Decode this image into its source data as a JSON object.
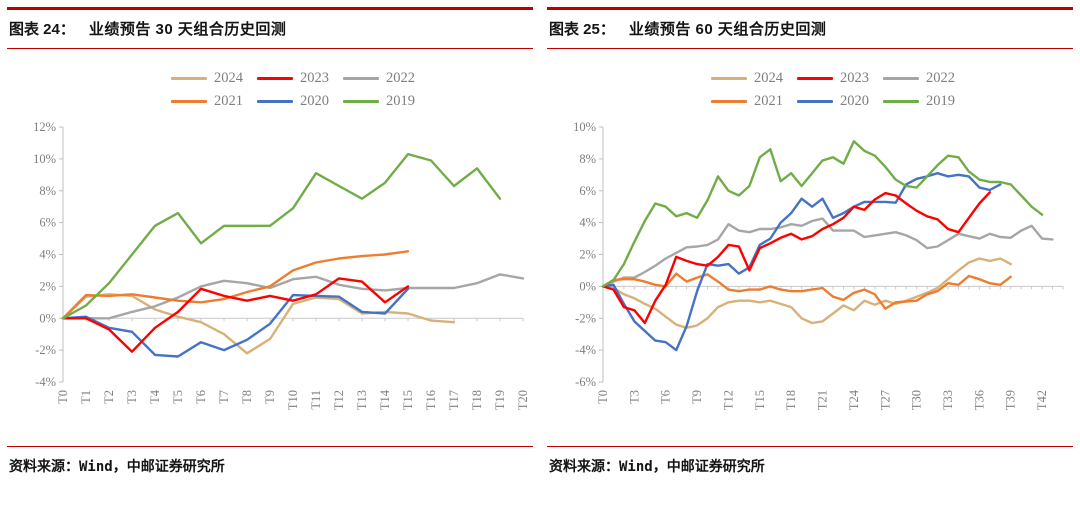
{
  "panels": [
    {
      "figure_label": "图表 24：",
      "title": "业绩预告 30 天组合历史回测",
      "source": "资料来源：Wind，中邮证券研究所"
    },
    {
      "figure_label": "图表 25：",
      "title": "业绩预告 60 天组合历史回测",
      "source": "资料来源：Wind，中邮证券研究所"
    }
  ],
  "style_colors": {
    "rule_red": "#c00000",
    "axis_gray": "#bfbfbf",
    "zero_line_gray": "#c9c9c9",
    "label_gray": "#7f7f7f"
  },
  "chart_data": [
    {
      "type": "line",
      "title": "业绩预告30天组合历史回测",
      "xlabel": "",
      "ylabel": "",
      "ylim": [
        -4,
        12
      ],
      "y_step": 2,
      "y_tick_labels": [
        "12%",
        "10%",
        "8%",
        "6%",
        "4%",
        "2%",
        "0%",
        "-2%",
        "-4%"
      ],
      "x_max": 20,
      "x_label_step": 1,
      "x_labels": [
        "T0",
        "T1",
        "T2",
        "T3",
        "T4",
        "T5",
        "T6",
        "T7",
        "T8",
        "T9",
        "T10",
        "T11",
        "T12",
        "T13",
        "T14",
        "T15",
        "T16",
        "T17",
        "T18",
        "T19",
        "T20"
      ],
      "grid": false,
      "legend_position": "top",
      "legend_rows": [
        [
          "2024",
          "2023",
          "2022"
        ],
        [
          "2021",
          "2020",
          "2019"
        ]
      ],
      "series": [
        {
          "name": "2024",
          "color": "#d8b179",
          "values": [
            0,
            1.35,
            1.5,
            1.4,
            0.55,
            0.1,
            -0.25,
            -1.0,
            -2.2,
            -1.3,
            0.9,
            1.3,
            1.2,
            0.3,
            0.4,
            0.3,
            -0.15,
            -0.25
          ]
        },
        {
          "name": "2023",
          "color": "#ff0000",
          "values": [
            0,
            0,
            -0.7,
            -2.1,
            -0.6,
            0.4,
            1.85,
            1.4,
            1.1,
            1.4,
            1.1,
            1.5,
            2.5,
            2.3,
            1.0,
            2.0
          ]
        },
        {
          "name": "2022",
          "color": "#a6a6a6",
          "values": [
            0,
            0,
            0,
            0.4,
            0.75,
            1.3,
            2.0,
            2.35,
            2.2,
            1.9,
            2.45,
            2.6,
            2.1,
            1.85,
            1.75,
            1.9,
            1.9,
            1.9,
            2.2,
            2.75,
            2.5
          ]
        },
        {
          "name": "2021",
          "color": "#ed7d31",
          "values": [
            0,
            1.45,
            1.4,
            1.5,
            1.3,
            1.1,
            1.0,
            1.2,
            1.65,
            2.0,
            3.0,
            3.5,
            3.75,
            3.9,
            4.0,
            4.2
          ]
        },
        {
          "name": "2020",
          "color": "#4472c4",
          "values": [
            0,
            0.1,
            -0.6,
            -0.85,
            -2.3,
            -2.4,
            -1.5,
            -2.0,
            -1.35,
            -0.35,
            1.45,
            1.4,
            1.35,
            0.4,
            0.3,
            1.85
          ]
        },
        {
          "name": "2019",
          "color": "#70ad47",
          "values": [
            0,
            0.8,
            2.2,
            4.0,
            5.8,
            6.6,
            4.7,
            5.8,
            5.8,
            5.8,
            6.9,
            9.1,
            8.3,
            7.5,
            8.5,
            10.3,
            9.9,
            8.3,
            9.4,
            7.5
          ]
        }
      ]
    },
    {
      "type": "line",
      "title": "业绩预告60天组合历史回测",
      "xlabel": "",
      "ylabel": "",
      "ylim": [
        -6,
        10
      ],
      "y_step": 2,
      "y_tick_labels": [
        "10%",
        "8%",
        "6%",
        "4%",
        "2%",
        "0%",
        "-2%",
        "-4%",
        "-6%"
      ],
      "x_max": 44,
      "x_label_step": 3,
      "x_labels": [
        "T0",
        "T3",
        "T6",
        "T9",
        "T12",
        "T15",
        "T18",
        "T21",
        "T24",
        "T27",
        "T30",
        "T33",
        "T36",
        "T39",
        "T42"
      ],
      "grid": false,
      "legend_position": "top",
      "legend_rows": [
        [
          "2024",
          "2023",
          "2022"
        ],
        [
          "2021",
          "2020",
          "2019"
        ]
      ],
      "series": [
        {
          "name": "2024",
          "color": "#d8b179",
          "values": [
            0,
            -0.1,
            -0.5,
            -0.75,
            -1.1,
            -1.4,
            -1.9,
            -2.4,
            -2.6,
            -2.45,
            -2.0,
            -1.3,
            -1.0,
            -0.9,
            -0.9,
            -1.0,
            -0.9,
            -1.1,
            -1.3,
            -2.0,
            -2.3,
            -2.2,
            -1.7,
            -1.2,
            -1.5,
            -0.9,
            -1.15,
            -0.9,
            -1.1,
            -0.9,
            -0.65,
            -0.4,
            -0.1,
            0.45,
            1.0,
            1.5,
            1.75,
            1.6,
            1.75,
            1.4
          ]
        },
        {
          "name": "2023",
          "color": "#ff0000",
          "values": [
            0,
            -0.2,
            -1.3,
            -1.5,
            -2.3,
            -0.9,
            0.1,
            1.85,
            1.6,
            1.4,
            1.3,
            1.85,
            2.6,
            2.5,
            1.0,
            2.4,
            2.7,
            3.05,
            3.3,
            2.95,
            3.15,
            3.6,
            3.9,
            4.3,
            5.0,
            4.8,
            5.45,
            5.85,
            5.7,
            5.2,
            4.75,
            4.4,
            4.2,
            3.6,
            3.4,
            4.3,
            5.2,
            5.9
          ]
        },
        {
          "name": "2022",
          "color": "#a6a6a6",
          "values": [
            0,
            0.3,
            0.55,
            0.55,
            0.9,
            1.3,
            1.75,
            2.1,
            2.45,
            2.5,
            2.6,
            2.95,
            3.9,
            3.5,
            3.4,
            3.6,
            3.6,
            3.7,
            3.9,
            3.8,
            4.1,
            4.25,
            3.5,
            3.5,
            3.5,
            3.1,
            3.2,
            3.3,
            3.4,
            3.2,
            2.9,
            2.4,
            2.5,
            2.9,
            3.3,
            3.15,
            3.0,
            3.3,
            3.1,
            3.05,
            3.5,
            3.8,
            3.0,
            2.95
          ]
        },
        {
          "name": "2021",
          "color": "#ed7d31",
          "values": [
            0,
            0.4,
            0.45,
            0.45,
            0.3,
            0.1,
            0,
            0.8,
            0.3,
            0.55,
            0.75,
            0.3,
            -0.2,
            -0.3,
            -0.2,
            -0.2,
            0,
            -0.2,
            -0.3,
            -0.3,
            -0.2,
            -0.1,
            -0.65,
            -0.85,
            -0.4,
            -0.2,
            -0.5,
            -1.4,
            -1.0,
            -0.95,
            -0.9,
            -0.5,
            -0.3,
            0.2,
            0.1,
            0.65,
            0.45,
            0.2,
            0.1,
            0.6
          ]
        },
        {
          "name": "2020",
          "color": "#4472c4",
          "values": [
            0,
            0.1,
            -1.1,
            -2.2,
            -2.8,
            -3.4,
            -3.5,
            -4.0,
            -2.5,
            -0.3,
            1.4,
            1.3,
            1.4,
            0.8,
            1.2,
            2.6,
            3.0,
            4.0,
            4.6,
            5.5,
            5.0,
            5.5,
            4.3,
            4.6,
            5.0,
            5.3,
            5.3,
            5.3,
            5.25,
            6.4,
            6.75,
            6.9,
            7.1,
            6.9,
            7.0,
            6.9,
            6.2,
            6.05,
            6.4
          ]
        },
        {
          "name": "2019",
          "color": "#70ad47",
          "values": [
            0,
            0.4,
            1.4,
            2.8,
            4.1,
            5.2,
            5.0,
            4.4,
            4.6,
            4.3,
            5.4,
            6.9,
            6.0,
            5.7,
            6.3,
            8.1,
            8.6,
            6.6,
            7.1,
            6.3,
            7.1,
            7.9,
            8.1,
            7.7,
            9.1,
            8.5,
            8.2,
            7.5,
            6.7,
            6.3,
            6.2,
            6.9,
            7.6,
            8.2,
            8.1,
            7.2,
            6.7,
            6.55,
            6.55,
            6.4,
            5.7,
            5.0,
            4.5
          ]
        }
      ]
    }
  ]
}
